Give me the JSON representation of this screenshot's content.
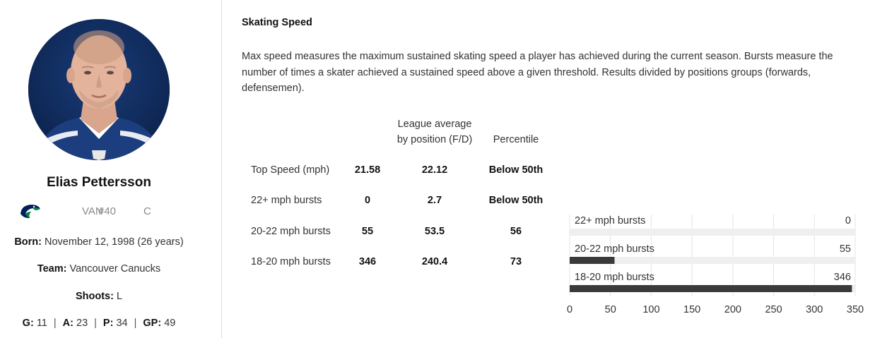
{
  "player": {
    "name": "Elias Pettersson",
    "team_abbr": "VAN",
    "number": "#40",
    "position": "C",
    "born_label": "Born:",
    "born_value": "November 12, 1998 (26 years)",
    "team_label": "Team:",
    "team_value": "Vancouver Canucks",
    "shoots_label": "Shoots:",
    "shoots_value": "L",
    "stats": [
      {
        "label": "G:",
        "value": "11"
      },
      {
        "label": "A:",
        "value": "23"
      },
      {
        "label": "P:",
        "value": "34"
      },
      {
        "label": "GP:",
        "value": "49"
      }
    ],
    "stats_separator": "|",
    "team_logo_icon": "canucks-orca-logo",
    "avatar_icon": "player-headshot"
  },
  "section": {
    "title": "Skating Speed",
    "description": "Max speed measures the maximum sustained skating speed a player has achieved during the current season. Bursts measure the number of times a skater achieved a sustained speed above a given threshold. Results divided by positions groups (forwards, defensemen)."
  },
  "table": {
    "header_avg_line1": "League average",
    "header_avg_line2": "by position (F/D)",
    "header_percentile": "Percentile",
    "rows": [
      {
        "label": "Top Speed (mph)",
        "value": "21.58",
        "avg": "22.12",
        "percentile": "Below 50th"
      },
      {
        "label": "22+ mph bursts",
        "value": "0",
        "avg": "2.7",
        "percentile": "Below 50th"
      },
      {
        "label": "20-22 mph bursts",
        "value": "55",
        "avg": "53.5",
        "percentile": "56"
      },
      {
        "label": "18-20 mph bursts",
        "value": "346",
        "avg": "240.4",
        "percentile": "73"
      }
    ]
  },
  "chart_data": {
    "type": "bar",
    "orientation": "horizontal",
    "categories": [
      "22+ mph bursts",
      "20-22 mph bursts",
      "18-20 mph bursts"
    ],
    "values": [
      0,
      55,
      346
    ],
    "xlim": [
      0,
      350
    ],
    "xticks": [
      0,
      50,
      100,
      150,
      200,
      250,
      300,
      350
    ],
    "grid": "vertical",
    "bar_color": "#3a3a3a",
    "track_color": "#efefef"
  },
  "colors": {
    "accent_dark": "#3a3a3a",
    "avatar_bg": "#0e2a5c",
    "canucks_blue": "#00205b",
    "canucks_green": "#00843d"
  }
}
